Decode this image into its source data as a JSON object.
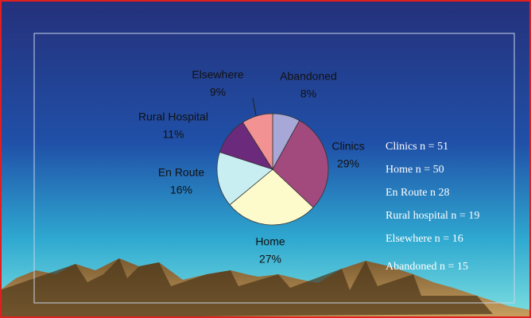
{
  "chart_data": {
    "type": "pie",
    "categories": [
      "Abandoned",
      "Clinics",
      "Home",
      "En Route",
      "Rural Hospital",
      "Elsewhere"
    ],
    "values": [
      8,
      29,
      27,
      16,
      11,
      9
    ],
    "value_labels": [
      "8%",
      "29%",
      "27%",
      "16%",
      "11%",
      "9%"
    ],
    "colors": [
      "#a8a8d8",
      "#a24a7e",
      "#fdfbcc",
      "#c9eef2",
      "#6c2a7c",
      "#f29292"
    ],
    "annotations": [
      "Clinics n = 51",
      "Home n = 50",
      "En Route n 28",
      "Rural hospital n = 19",
      "Elsewhere n = 16",
      "Abandoned n = 15"
    ]
  }
}
